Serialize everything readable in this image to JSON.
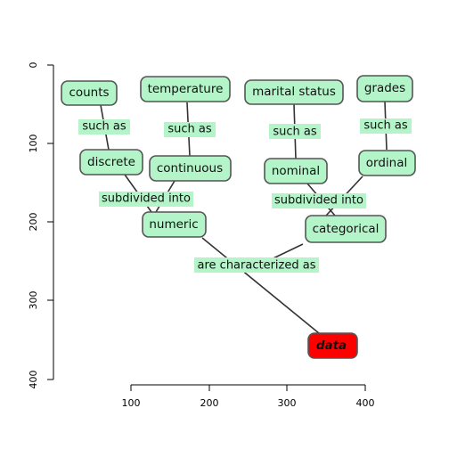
{
  "diagram": {
    "nodes": {
      "counts": "counts",
      "temperature": "temperature",
      "marital_status": "marital status",
      "grades": "grades",
      "discrete": "discrete",
      "continuous": "continuous",
      "nominal": "nominal",
      "ordinal": "ordinal",
      "numeric": "numeric",
      "categorical": "categorical",
      "data": "data"
    },
    "links": {
      "such_as_1": "such as",
      "such_as_2": "such as",
      "such_as_3": "such as",
      "such_as_4": "such as",
      "subdivided_left": "subdivided into",
      "subdivided_right": "subdivided into",
      "characterized": "are characterized as"
    },
    "colors": {
      "node_fill": "#b3f5c8",
      "root_fill": "#ff0000",
      "border": "#555555"
    }
  },
  "axes": {
    "x_ticks": [
      "100",
      "200",
      "300",
      "400"
    ],
    "y_ticks": [
      "0",
      "100",
      "200",
      "300",
      "400"
    ]
  }
}
